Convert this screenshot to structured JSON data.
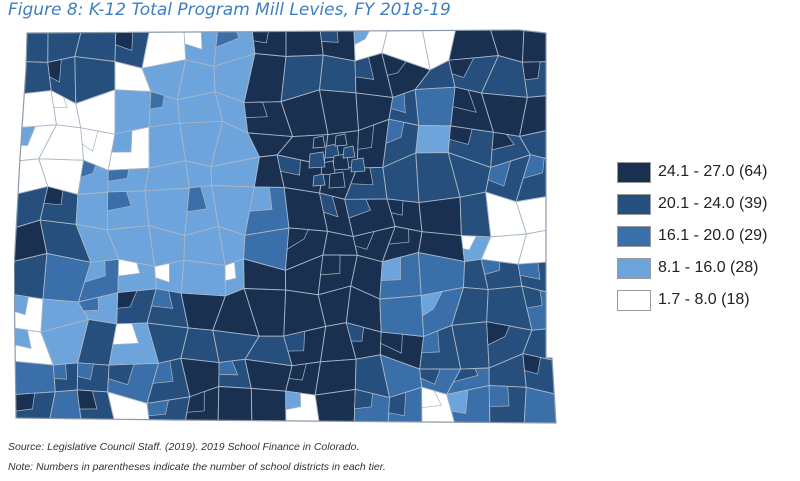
{
  "figure": {
    "title": "Figure 8: K-12 Total Program Mill Levies, FY 2018-19",
    "source": "Source: Legislative Council Staff. (2019). 2019 School Finance in Colorado.",
    "note": "Note: Numbers in parentheses indicate the number of school districts in each tier."
  },
  "legend": {
    "items": [
      {
        "label": "24.1 - 27.0 (64)",
        "color": "#1a3050"
      },
      {
        "label": "20.1 - 24.0 (39)",
        "color": "#274f7e"
      },
      {
        "label": "16.1 - 20.0 (29)",
        "color": "#3a6faa"
      },
      {
        "label": "8.1 - 16.0 (28)",
        "color": "#6da4dc"
      },
      {
        "label": "1.7 - 8.0 (18)",
        "color": "#ffffff"
      }
    ]
  },
  "map": {
    "boundary_color": "#a8b6c6",
    "outline_color": "#8c9aab"
  }
}
